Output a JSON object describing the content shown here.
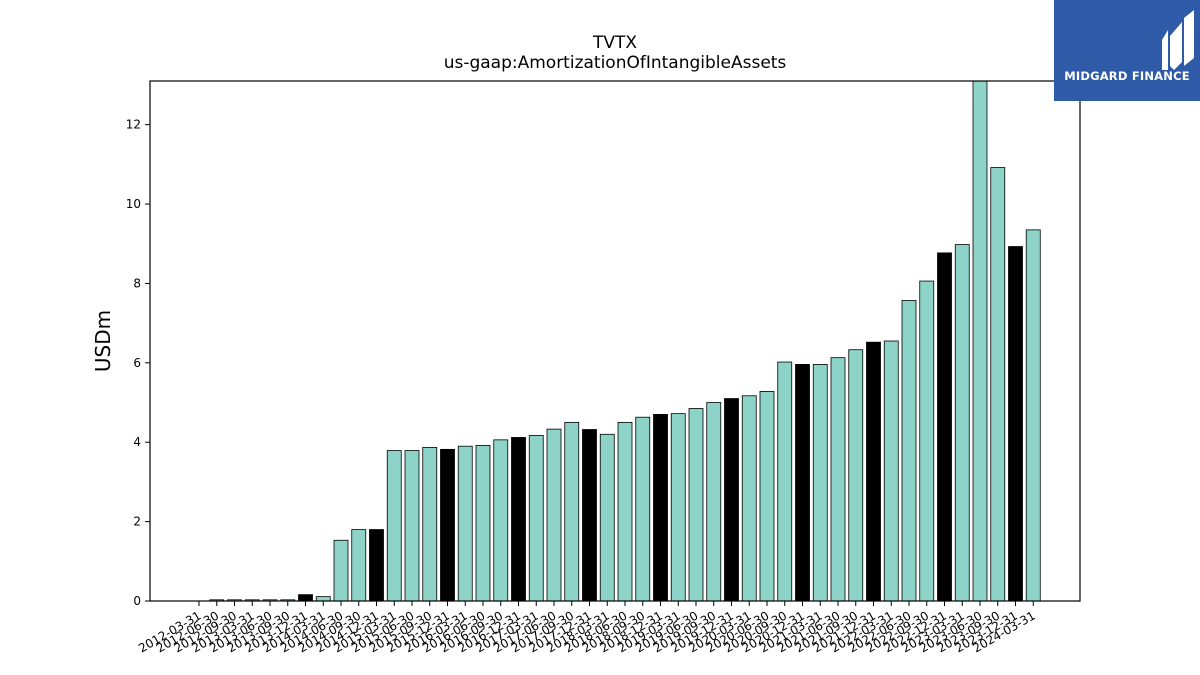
{
  "brand": {
    "name": "MIDGARD FINANCE",
    "bg_color": "#2f5aa8",
    "icon": "midgard-logo-icon"
  },
  "chart_data": {
    "type": "bar",
    "title": "TVTX",
    "subtitle": "us-gaap:AmortizationOfIntangibleAssets",
    "xlabel": "",
    "ylabel": "USDm",
    "ylim": [
      0,
      13.1
    ],
    "yticks": [
      0,
      2,
      4,
      6,
      8,
      10,
      12
    ],
    "grid": false,
    "colors": {
      "quarter": "#8dd3c7",
      "fiscal_year_end": "#000000",
      "edge": "#000000"
    },
    "categories": [
      "2012-03-31",
      "2012-06-30",
      "2012-09-30",
      "2013-03-31",
      "2013-06-30",
      "2013-09-30",
      "2013-12-31",
      "2014-03-31",
      "2014-06-30",
      "2014-09-30",
      "2014-12-31",
      "2015-03-31",
      "2015-06-30",
      "2015-09-30",
      "2015-12-31",
      "2016-03-31",
      "2016-06-30",
      "2016-09-30",
      "2016-12-31",
      "2017-03-31",
      "2017-06-30",
      "2017-09-30",
      "2017-12-31",
      "2018-03-31",
      "2018-06-30",
      "2018-09-30",
      "2018-12-31",
      "2019-03-31",
      "2019-06-30",
      "2019-09-30",
      "2019-12-31",
      "2020-03-31",
      "2020-06-30",
      "2020-09-30",
      "2020-12-31",
      "2021-03-31",
      "2021-06-30",
      "2021-09-30",
      "2021-12-31",
      "2022-03-31",
      "2022-06-30",
      "2022-09-30",
      "2022-12-31",
      "2023-03-31",
      "2023-06-30",
      "2023-09-30",
      "2023-12-31",
      "2024-03-31"
    ],
    "values": [
      0.0,
      0.03,
      0.03,
      0.03,
      0.03,
      0.03,
      0.16,
      0.11,
      1.53,
      1.8,
      1.8,
      3.79,
      3.79,
      3.87,
      3.82,
      3.9,
      3.92,
      4.06,
      4.12,
      4.17,
      4.33,
      4.5,
      4.32,
      4.2,
      4.5,
      4.63,
      4.7,
      4.72,
      4.85,
      5.0,
      5.1,
      5.17,
      5.28,
      6.02,
      5.96,
      5.96,
      6.13,
      6.33,
      6.52,
      6.55,
      7.57,
      8.06,
      8.77,
      8.98,
      13.1,
      10.92,
      8.93,
      9.35
    ],
    "fiscal_year_end": [
      false,
      false,
      false,
      false,
      false,
      false,
      true,
      false,
      false,
      false,
      true,
      false,
      false,
      false,
      true,
      false,
      false,
      false,
      true,
      false,
      false,
      false,
      true,
      false,
      false,
      false,
      true,
      false,
      false,
      false,
      true,
      false,
      false,
      false,
      true,
      false,
      false,
      false,
      true,
      false,
      false,
      false,
      true,
      false,
      false,
      false,
      true,
      false
    ]
  }
}
